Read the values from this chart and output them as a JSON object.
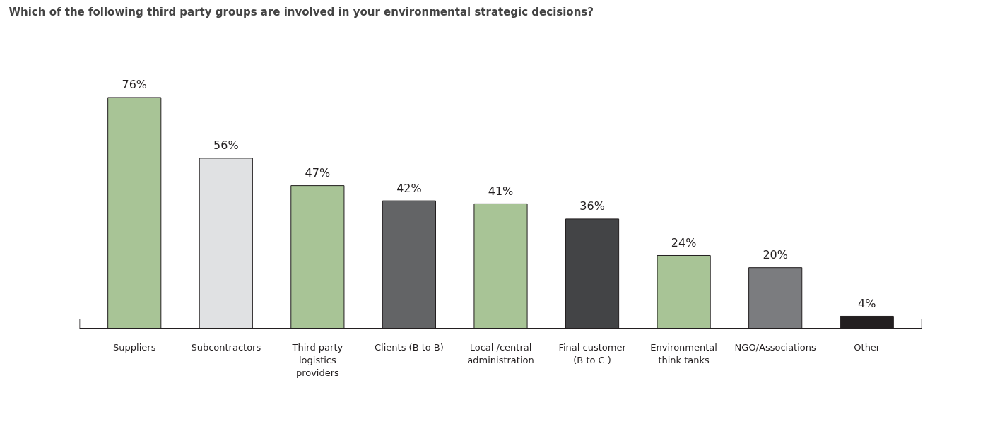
{
  "chart_data": {
    "type": "bar",
    "title": "Which of the following third party groups are involved in your environmental strategic decisions?",
    "categories": [
      "Suppliers",
      "Subcontractors",
      "Third party logistics providers",
      "Clients (B to B)",
      "Local /central administration",
      "Final customer (B to C )",
      "Environmental think tanks",
      "NGO/Associations",
      "Other"
    ],
    "values": [
      76,
      56,
      47,
      42,
      41,
      36,
      24,
      20,
      4
    ],
    "colors": [
      "#a8c496",
      "#e0e1e3",
      "#a8c496",
      "#636466",
      "#a8c496",
      "#434446",
      "#a8c496",
      "#7b7c7f",
      "#231f20"
    ],
    "value_labels": [
      "76%",
      "56%",
      "47%",
      "42%",
      "41%",
      "36%",
      "24%",
      "20%",
      "4%"
    ]
  }
}
